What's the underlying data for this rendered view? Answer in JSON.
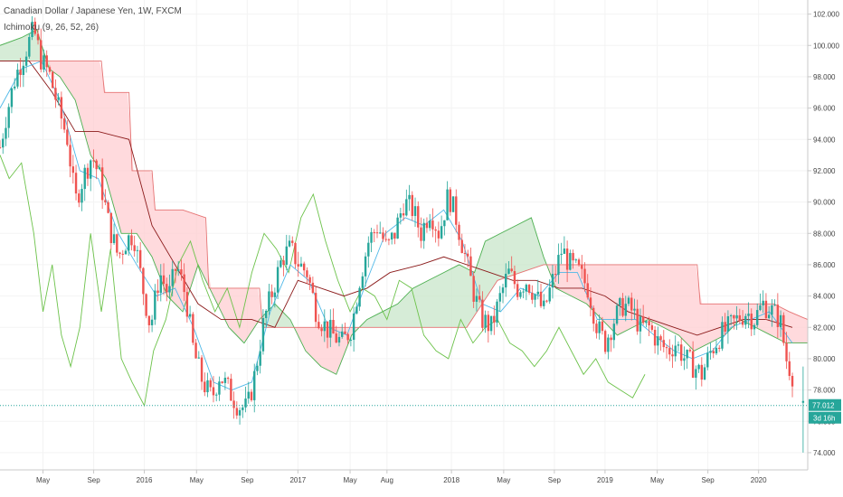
{
  "legend": {
    "symbol": "Canadian Dollar / Japanese Yen, 1W, FXCM",
    "indicator": "Ichimoku (9, 26, 52, 26)"
  },
  "colors": {
    "up": "#26a69a",
    "down": "#ef5350",
    "tenkan": "#4fb8e8",
    "kijun": "#8b1a1a",
    "chikou": "#6cc24a",
    "span_a": "#4caf50",
    "span_b": "#e57373",
    "cloud_bull": "#c8e6c9",
    "cloud_bear": "#ffcdd2",
    "last_tag": "#26a69a",
    "grid": "#f3f3f3",
    "axis": "#c8c8c8"
  },
  "chart_data": {
    "type": "candlestick",
    "ylim": [
      72.9,
      102.9
    ],
    "ylabels": [
      "74.000",
      "76.000",
      "78.000",
      "80.000",
      "82.000",
      "84.000",
      "86.000",
      "88.000",
      "90.000",
      "92.000",
      "94.000",
      "96.000",
      "98.000",
      "100.000",
      "102.000"
    ],
    "xticks": [
      {
        "label": "May",
        "x": 2015.34
      },
      {
        "label": "Sep",
        "x": 2015.67
      },
      {
        "label": "2016",
        "x": 2016.0
      },
      {
        "label": "May",
        "x": 2016.34
      },
      {
        "label": "Sep",
        "x": 2016.67
      },
      {
        "label": "2017",
        "x": 2017.0
      },
      {
        "label": "May",
        "x": 2017.34
      },
      {
        "label": "Aug",
        "x": 2017.58
      },
      {
        "label": "2018",
        "x": 2018.0
      },
      {
        "label": "May",
        "x": 2018.34
      },
      {
        "label": "Sep",
        "x": 2018.67
      },
      {
        "label": "2019",
        "x": 2019.0
      },
      {
        "label": "May",
        "x": 2019.34
      },
      {
        "label": "Sep",
        "x": 2019.67
      },
      {
        "label": "2020",
        "x": 2020.0
      }
    ],
    "xlim": [
      2015.06,
      2020.32
    ],
    "price_path": [
      [
        2015.06,
        93.5
      ],
      [
        2015.1,
        95.5
      ],
      [
        2015.16,
        98.0
      ],
      [
        2015.22,
        99.5
      ],
      [
        2015.28,
        101.0
      ],
      [
        2015.33,
        99.0
      ],
      [
        2015.38,
        98.2
      ],
      [
        2015.44,
        96.0
      ],
      [
        2015.5,
        94.0
      ],
      [
        2015.55,
        90.0
      ],
      [
        2015.6,
        91.5
      ],
      [
        2015.66,
        93.0
      ],
      [
        2015.71,
        91.5
      ],
      [
        2015.77,
        88.5
      ],
      [
        2015.83,
        86.5
      ],
      [
        2015.88,
        87.5
      ],
      [
        2015.93,
        88.0
      ],
      [
        2015.99,
        84.5
      ],
      [
        2016.04,
        82.0
      ],
      [
        2016.1,
        85.5
      ],
      [
        2016.16,
        84.0
      ],
      [
        2016.21,
        86.0
      ],
      [
        2016.27,
        84.0
      ],
      [
        2016.32,
        80.5
      ],
      [
        2016.38,
        78.5
      ],
      [
        2016.44,
        77.5
      ],
      [
        2016.49,
        79.0
      ],
      [
        2016.55,
        78.0
      ],
      [
        2016.61,
        77.0
      ],
      [
        2016.67,
        76.8
      ],
      [
        2016.72,
        79.0
      ],
      [
        2016.78,
        82.5
      ],
      [
        2016.84,
        84.5
      ],
      [
        2016.9,
        86.5
      ],
      [
        2016.95,
        87.0
      ],
      [
        2017.01,
        86.0
      ],
      [
        2017.06,
        85.5
      ],
      [
        2017.12,
        83.0
      ],
      [
        2017.18,
        82.0
      ],
      [
        2017.23,
        81.5
      ],
      [
        2017.29,
        81.0
      ],
      [
        2017.35,
        82.0
      ],
      [
        2017.4,
        85.0
      ],
      [
        2017.46,
        87.5
      ],
      [
        2017.52,
        88.5
      ],
      [
        2017.58,
        87.0
      ],
      [
        2017.63,
        88.0
      ],
      [
        2017.69,
        90.0
      ],
      [
        2017.75,
        89.5
      ],
      [
        2017.8,
        88.0
      ],
      [
        2017.86,
        89.5
      ],
      [
        2017.92,
        88.0
      ],
      [
        2017.98,
        90.5
      ],
      [
        2018.03,
        89.0
      ],
      [
        2018.09,
        86.5
      ],
      [
        2018.15,
        84.0
      ],
      [
        2018.2,
        82.5
      ],
      [
        2018.26,
        82.0
      ],
      [
        2018.32,
        84.0
      ],
      [
        2018.37,
        85.5
      ],
      [
        2018.43,
        84.5
      ],
      [
        2018.49,
        85.0
      ],
      [
        2018.55,
        84.0
      ],
      [
        2018.6,
        83.0
      ],
      [
        2018.66,
        85.0
      ],
      [
        2018.72,
        87.0
      ],
      [
        2018.77,
        86.0
      ],
      [
        2018.83,
        85.5
      ],
      [
        2018.89,
        84.5
      ],
      [
        2018.95,
        82.0
      ],
      [
        2019.0,
        81.0
      ],
      [
        2019.06,
        82.5
      ],
      [
        2019.12,
        83.5
      ],
      [
        2019.18,
        83.0
      ],
      [
        2019.23,
        82.0
      ],
      [
        2019.29,
        82.0
      ],
      [
        2019.35,
        81.0
      ],
      [
        2019.41,
        80.5
      ],
      [
        2019.46,
        81.0
      ],
      [
        2019.52,
        80.0
      ],
      [
        2019.58,
        79.5
      ],
      [
        2019.63,
        79.0
      ],
      [
        2019.69,
        80.5
      ],
      [
        2019.75,
        81.5
      ],
      [
        2019.81,
        82.0
      ],
      [
        2019.86,
        82.5
      ],
      [
        2019.92,
        83.0
      ],
      [
        2019.97,
        82.5
      ],
      [
        2020.03,
        83.5
      ],
      [
        2020.09,
        83.0
      ],
      [
        2020.14,
        82.5
      ],
      [
        2020.18,
        80.0
      ],
      [
        2020.22,
        79.0
      ]
    ],
    "tenkan_path": [
      [
        2015.06,
        96.0
      ],
      [
        2015.2,
        98.5
      ],
      [
        2015.33,
        99.0
      ],
      [
        2015.45,
        96.5
      ],
      [
        2015.58,
        92.0
      ],
      [
        2015.7,
        91.5
      ],
      [
        2015.83,
        88.0
      ],
      [
        2015.95,
        86.0
      ],
      [
        2016.08,
        84.0
      ],
      [
        2016.2,
        84.5
      ],
      [
        2016.32,
        82.0
      ],
      [
        2016.45,
        78.5
      ],
      [
        2016.57,
        78.0
      ],
      [
        2016.7,
        78.5
      ],
      [
        2016.82,
        83.0
      ],
      [
        2016.95,
        86.0
      ],
      [
        2017.07,
        85.0
      ],
      [
        2017.2,
        82.0
      ],
      [
        2017.32,
        81.5
      ],
      [
        2017.45,
        85.0
      ],
      [
        2017.57,
        88.0
      ],
      [
        2017.7,
        89.0
      ],
      [
        2017.82,
        88.5
      ],
      [
        2017.95,
        89.5
      ],
      [
        2018.07,
        87.5
      ],
      [
        2018.2,
        83.5
      ],
      [
        2018.32,
        83.0
      ],
      [
        2018.45,
        84.5
      ],
      [
        2018.57,
        84.0
      ],
      [
        2018.7,
        85.5
      ],
      [
        2018.82,
        85.5
      ],
      [
        2018.95,
        82.5
      ],
      [
        2019.07,
        82.5
      ],
      [
        2019.2,
        82.5
      ],
      [
        2019.32,
        81.5
      ],
      [
        2019.45,
        80.5
      ],
      [
        2019.57,
        80.0
      ],
      [
        2019.7,
        80.5
      ],
      [
        2019.82,
        82.0
      ],
      [
        2019.95,
        82.5
      ],
      [
        2020.07,
        83.0
      ],
      [
        2020.22,
        81.0
      ]
    ],
    "kijun_path": [
      [
        2015.06,
        99.0
      ],
      [
        2015.25,
        99.0
      ],
      [
        2015.4,
        97.0
      ],
      [
        2015.55,
        94.5
      ],
      [
        2015.7,
        94.5
      ],
      [
        2015.9,
        94.0
      ],
      [
        2016.05,
        88.5
      ],
      [
        2016.2,
        86.0
      ],
      [
        2016.35,
        83.5
      ],
      [
        2016.5,
        82.5
      ],
      [
        2016.7,
        82.5
      ],
      [
        2016.85,
        82.0
      ],
      [
        2017.0,
        85.0
      ],
      [
        2017.15,
        84.5
      ],
      [
        2017.3,
        84.0
      ],
      [
        2017.45,
        84.5
      ],
      [
        2017.6,
        85.5
      ],
      [
        2017.8,
        86.0
      ],
      [
        2017.95,
        86.5
      ],
      [
        2018.1,
        86.0
      ],
      [
        2018.25,
        85.5
      ],
      [
        2018.4,
        85.0
      ],
      [
        2018.55,
        85.0
      ],
      [
        2018.7,
        84.5
      ],
      [
        2018.85,
        84.5
      ],
      [
        2019.0,
        84.0
      ],
      [
        2019.15,
        83.0
      ],
      [
        2019.3,
        82.5
      ],
      [
        2019.45,
        82.0
      ],
      [
        2019.6,
        81.5
      ],
      [
        2019.75,
        82.0
      ],
      [
        2019.9,
        82.5
      ],
      [
        2020.05,
        82.5
      ],
      [
        2020.22,
        82.0
      ]
    ],
    "chikou_path": [
      [
        2015.06,
        93.0
      ],
      [
        2015.12,
        91.5
      ],
      [
        2015.2,
        92.5
      ],
      [
        2015.28,
        88.0
      ],
      [
        2015.34,
        83.0
      ],
      [
        2015.4,
        86.0
      ],
      [
        2015.46,
        81.5
      ],
      [
        2015.52,
        79.5
      ],
      [
        2015.58,
        82.0
      ],
      [
        2015.65,
        88.0
      ],
      [
        2015.72,
        83.0
      ],
      [
        2015.78,
        87.0
      ],
      [
        2015.85,
        80.0
      ],
      [
        2015.92,
        78.5
      ],
      [
        2016.0,
        77.0
      ],
      [
        2016.06,
        80.5
      ],
      [
        2016.14,
        82.5
      ],
      [
        2016.22,
        86.0
      ],
      [
        2016.3,
        87.5
      ],
      [
        2016.38,
        85.0
      ],
      [
        2016.46,
        83.0
      ],
      [
        2016.54,
        84.5
      ],
      [
        2016.62,
        82.0
      ],
      [
        2016.7,
        85.5
      ],
      [
        2016.78,
        88.0
      ],
      [
        2016.86,
        87.0
      ],
      [
        2016.94,
        85.5
      ],
      [
        2017.02,
        89.0
      ],
      [
        2017.1,
        90.5
      ],
      [
        2017.18,
        87.5
      ],
      [
        2017.26,
        85.0
      ],
      [
        2017.34,
        83.0
      ],
      [
        2017.42,
        84.5
      ],
      [
        2017.5,
        84.0
      ],
      [
        2017.58,
        82.5
      ],
      [
        2017.66,
        85.0
      ],
      [
        2017.74,
        84.5
      ],
      [
        2017.82,
        81.5
      ],
      [
        2017.9,
        80.5
      ],
      [
        2017.98,
        80.0
      ],
      [
        2018.06,
        82.5
      ],
      [
        2018.14,
        81.0
      ],
      [
        2018.22,
        82.0
      ],
      [
        2018.3,
        82.5
      ],
      [
        2018.38,
        81.0
      ],
      [
        2018.46,
        80.5
      ],
      [
        2018.54,
        79.5
      ],
      [
        2018.62,
        80.5
      ],
      [
        2018.7,
        82.0
      ],
      [
        2018.78,
        80.5
      ],
      [
        2018.86,
        79.0
      ],
      [
        2018.94,
        80.0
      ],
      [
        2019.02,
        78.5
      ],
      [
        2019.1,
        78.0
      ],
      [
        2019.18,
        77.5
      ],
      [
        2019.26,
        79.0
      ]
    ],
    "span_a_path": [
      [
        2015.06,
        100.0
      ],
      [
        2015.2,
        100.5
      ],
      [
        2015.3,
        101.0
      ],
      [
        2015.38,
        98.5
      ],
      [
        2015.45,
        98.0
      ],
      [
        2015.55,
        96.5
      ],
      [
        2015.65,
        93.0
      ],
      [
        2015.75,
        91.5
      ],
      [
        2015.85,
        88.0
      ],
      [
        2015.95,
        88.0
      ],
      [
        2016.05,
        86.5
      ],
      [
        2016.15,
        84.0
      ],
      [
        2016.25,
        83.0
      ],
      [
        2016.35,
        86.0
      ],
      [
        2016.45,
        84.0
      ],
      [
        2016.55,
        82.0
      ],
      [
        2016.65,
        81.0
      ],
      [
        2016.75,
        82.5
      ],
      [
        2016.85,
        83.5
      ],
      [
        2016.95,
        82.5
      ],
      [
        2017.05,
        80.5
      ],
      [
        2017.15,
        79.5
      ],
      [
        2017.25,
        79.0
      ],
      [
        2017.35,
        81.5
      ],
      [
        2017.45,
        82.5
      ],
      [
        2017.55,
        83.0
      ],
      [
        2017.65,
        83.5
      ],
      [
        2017.75,
        84.5
      ],
      [
        2017.85,
        85.0
      ],
      [
        2017.95,
        85.5
      ],
      [
        2018.05,
        86.0
      ],
      [
        2018.15,
        85.5
      ],
      [
        2018.22,
        87.5
      ],
      [
        2018.32,
        88.0
      ],
      [
        2018.42,
        88.5
      ],
      [
        2018.52,
        89.0
      ],
      [
        2018.6,
        86.5
      ],
      [
        2018.68,
        84.5
      ],
      [
        2018.78,
        84.0
      ],
      [
        2018.88,
        83.5
      ],
      [
        2018.98,
        82.5
      ],
      [
        2019.08,
        81.5
      ],
      [
        2019.18,
        82.0
      ],
      [
        2019.28,
        82.5
      ],
      [
        2019.38,
        82.0
      ],
      [
        2019.48,
        81.5
      ],
      [
        2019.58,
        80.5
      ],
      [
        2019.68,
        81.0
      ],
      [
        2019.78,
        81.5
      ],
      [
        2019.88,
        82.5
      ],
      [
        2019.98,
        82.0
      ],
      [
        2020.08,
        81.5
      ],
      [
        2020.18,
        81.0
      ],
      [
        2020.32,
        81.0
      ]
    ],
    "span_b_path": [
      [
        2015.06,
        99.0
      ],
      [
        2015.3,
        99.0
      ],
      [
        2015.5,
        99.0
      ],
      [
        2015.72,
        99.0
      ],
      [
        2015.74,
        97.0
      ],
      [
        2015.9,
        97.0
      ],
      [
        2015.92,
        92.0
      ],
      [
        2016.05,
        92.0
      ],
      [
        2016.07,
        89.5
      ],
      [
        2016.25,
        89.5
      ],
      [
        2016.4,
        89.0
      ],
      [
        2016.42,
        84.5
      ],
      [
        2016.6,
        84.5
      ],
      [
        2016.75,
        84.5
      ],
      [
        2016.77,
        82.0
      ],
      [
        2017.0,
        82.0
      ],
      [
        2017.3,
        82.0
      ],
      [
        2017.55,
        82.0
      ],
      [
        2017.85,
        82.0
      ],
      [
        2018.1,
        82.0
      ],
      [
        2018.3,
        85.0
      ],
      [
        2018.6,
        86.0
      ],
      [
        2018.9,
        86.0
      ],
      [
        2019.2,
        86.0
      ],
      [
        2019.4,
        86.0
      ],
      [
        2019.6,
        86.0
      ],
      [
        2019.62,
        83.5
      ],
      [
        2019.9,
        83.5
      ],
      [
        2020.1,
        83.5
      ],
      [
        2020.2,
        83.0
      ],
      [
        2020.32,
        82.5
      ]
    ],
    "last": {
      "value": "77.012",
      "countdown": "3d 16h",
      "y": 77.012
    }
  }
}
